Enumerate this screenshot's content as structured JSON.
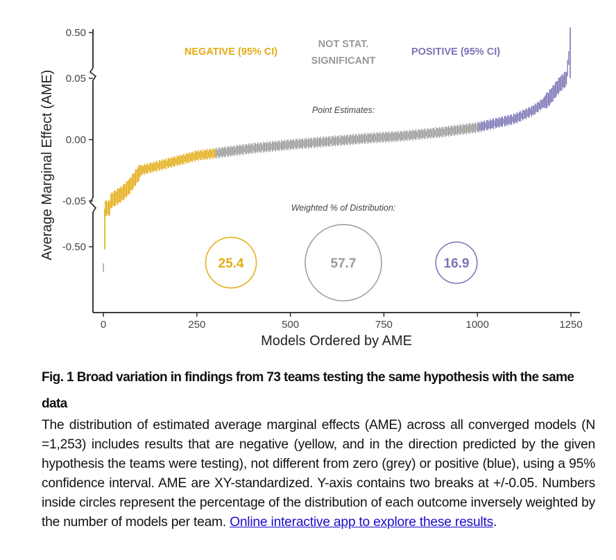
{
  "chart_data": {
    "type": "scatter",
    "x_label": "Models Ordered by AME",
    "y_label": "Average Marginal Effect (AME)",
    "x_ticks": [
      0,
      250,
      500,
      750,
      1000,
      1250
    ],
    "y_ticks": [
      "0.50",
      "0.05",
      "0.00",
      "-0.05",
      "-0.50"
    ],
    "xlim": [
      0,
      1253
    ],
    "y_axis_breaks": [
      -0.05,
      0.05
    ],
    "n_models": 1253,
    "series": [
      {
        "name": "NEGATIVE (95% CI)",
        "color": "#e3ac14",
        "x_range": [
          1,
          300
        ]
      },
      {
        "name": "NOT STAT. SIGNIFICANT",
        "color": "#999999",
        "x_range": [
          300,
          1003
        ]
      },
      {
        "name": "POSITIVE (95% CI)",
        "color": "#7a74b4",
        "x_range": [
          1003,
          1253
        ]
      }
    ],
    "curve_points": [
      {
        "x": 0,
        "y": -0.53
      },
      {
        "x": 3,
        "y": -0.06
      },
      {
        "x": 10,
        "y": -0.052
      },
      {
        "x": 30,
        "y": -0.048
      },
      {
        "x": 50,
        "y": -0.044
      },
      {
        "x": 70,
        "y": -0.038
      },
      {
        "x": 100,
        "y": -0.025
      },
      {
        "x": 150,
        "y": -0.021
      },
      {
        "x": 200,
        "y": -0.017
      },
      {
        "x": 250,
        "y": -0.013
      },
      {
        "x": 300,
        "y": -0.011
      },
      {
        "x": 400,
        "y": -0.007
      },
      {
        "x": 500,
        "y": -0.004
      },
      {
        "x": 600,
        "y": -0.0015
      },
      {
        "x": 700,
        "y": 0.001
      },
      {
        "x": 800,
        "y": 0.003
      },
      {
        "x": 900,
        "y": 0.006
      },
      {
        "x": 1000,
        "y": 0.01
      },
      {
        "x": 1100,
        "y": 0.017
      },
      {
        "x": 1150,
        "y": 0.024
      },
      {
        "x": 1190,
        "y": 0.033
      },
      {
        "x": 1220,
        "y": 0.045
      },
      {
        "x": 1238,
        "y": 0.05
      },
      {
        "x": 1253,
        "y": 0.55
      }
    ],
    "annotation_point_estimates": "Point Estimates:",
    "annotation_weighted": "Weighted % of Distribution:",
    "weighted_percent": [
      {
        "label": "25.4",
        "value": 25.4,
        "color": "#e3ac14"
      },
      {
        "label": "57.7",
        "value": 57.7,
        "color": "#999999"
      },
      {
        "label": "16.9",
        "value": 16.9,
        "color": "#7a74b4"
      }
    ]
  },
  "caption": {
    "title": "Fig. 1 Broad variation in findings from 73 teams testing the same hypothesis with the same data",
    "body": "The distribution of estimated average marginal effects (AME) across all converged models (N =1,253) includes results that are negative (yellow, and in the direction predicted by the given hypothesis the teams were testing), not different from zero (grey) or positive (blue), using a 95% confidence interval. AME are XY-standardized. Y-axis contains two breaks at +/-0.05. Numbers inside circles represent the percentage of the distribution of each outcome inversely weighted by the number of models per team.",
    "link_text": "Online interactive app to explore these results",
    "trailing": "."
  }
}
